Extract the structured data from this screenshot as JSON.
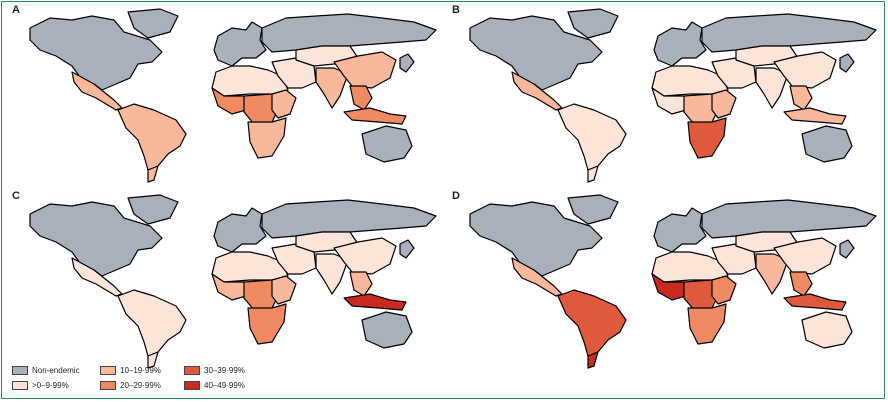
{
  "figure": {
    "panels": [
      {
        "label": "A",
        "categories": {
          "north_america": 0,
          "greenland": 0,
          "mexico_central": 2,
          "south_america": 2,
          "patagonia": 2,
          "europe": 0,
          "russia": 0,
          "north_africa": 1,
          "west_africa": 3,
          "central_africa": 3,
          "east_africa": 2,
          "southern_africa": 2,
          "middle_east": 1,
          "central_asia": 1,
          "south_asia": 2,
          "china": 2,
          "southeast_asia": 3,
          "maritime_se_asia": 3,
          "australia": 0,
          "japan": 0
        }
      },
      {
        "label": "B",
        "categories": {
          "north_america": 0,
          "greenland": 0,
          "mexico_central": 2,
          "south_america": 1,
          "patagonia": 1,
          "europe": 0,
          "russia": 0,
          "north_africa": 1,
          "west_africa": 1,
          "central_africa": 2,
          "east_africa": 2,
          "southern_africa": 4,
          "middle_east": 1,
          "central_asia": 1,
          "south_asia": 1,
          "china": 1,
          "southeast_asia": 2,
          "maritime_se_asia": 2,
          "australia": 0,
          "japan": 0
        }
      },
      {
        "label": "C",
        "categories": {
          "north_america": 0,
          "greenland": 0,
          "mexico_central": 1,
          "south_america": 1,
          "patagonia": 1,
          "europe": 0,
          "russia": 0,
          "north_africa": 1,
          "west_africa": 2,
          "central_africa": 3,
          "east_africa": 2,
          "southern_africa": 3,
          "middle_east": 1,
          "central_asia": 1,
          "south_asia": 1,
          "china": 1,
          "southeast_asia": 2,
          "maritime_se_asia": 5,
          "australia": 0,
          "japan": 0
        }
      },
      {
        "label": "D",
        "categories": {
          "north_america": 0,
          "greenland": 0,
          "mexico_central": 2,
          "south_america": 4,
          "patagonia": 5,
          "europe": 0,
          "russia": 0,
          "north_africa": 1,
          "west_africa": 5,
          "central_africa": 4,
          "east_africa": 3,
          "southern_africa": 3,
          "middle_east": 1,
          "central_asia": 1,
          "south_asia": 2,
          "china": 1,
          "southeast_asia": 3,
          "maritime_se_asia": 4,
          "australia": 1,
          "japan": 0
        }
      }
    ],
    "legend": [
      {
        "label": "Non-endemic",
        "color": "#a8b0bb"
      },
      {
        "label": ">0–9·99%",
        "color": "#fde4d8"
      },
      {
        "label": "10–19·99%",
        "color": "#f9b89b"
      },
      {
        "label": "20–29·99%",
        "color": "#ef8a62"
      },
      {
        "label": "30–39·99%",
        "color": "#df5a3d"
      },
      {
        "label": "40–49·99%",
        "color": "#c92a1f"
      }
    ]
  }
}
